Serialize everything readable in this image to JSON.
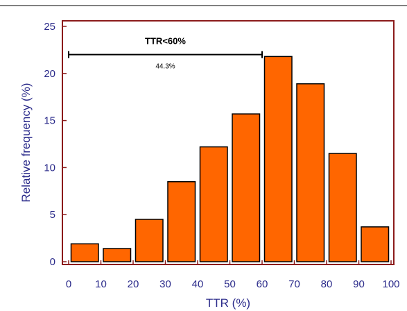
{
  "chart_data": {
    "type": "bar",
    "title": "",
    "xlabel": "TTR (%)",
    "ylabel": "Relative frequency (%)",
    "xlim": [
      0,
      100
    ],
    "ylim": [
      0,
      25
    ],
    "x_ticks": [
      "0",
      "10",
      "20",
      "30",
      "40",
      "50",
      "60",
      "70",
      "80",
      "90",
      "100"
    ],
    "y_ticks": [
      "0",
      "5",
      "10",
      "15",
      "20",
      "25"
    ],
    "bin_width": 10,
    "bins": [
      {
        "from": 0,
        "to": 10,
        "value": 1.9
      },
      {
        "from": 10,
        "to": 20,
        "value": 1.4
      },
      {
        "from": 20,
        "to": 30,
        "value": 4.5
      },
      {
        "from": 30,
        "to": 40,
        "value": 8.5
      },
      {
        "from": 40,
        "to": 50,
        "value": 12.2
      },
      {
        "from": 50,
        "to": 60,
        "value": 15.7
      },
      {
        "from": 60,
        "to": 70,
        "value": 21.8
      },
      {
        "from": 70,
        "to": 80,
        "value": 18.9
      },
      {
        "from": 80,
        "to": 90,
        "value": 11.5
      },
      {
        "from": 90,
        "to": 100,
        "value": 3.7
      }
    ],
    "grid": false,
    "colors": {
      "bar_fill": "#ff6600",
      "bar_stroke": "#000000",
      "axis": "#8b1a1a",
      "text": "#2a2a8a"
    },
    "annotation": {
      "label": "TTR<60%",
      "value_label": "44.3%",
      "x_start": 0,
      "x_end": 60,
      "y": 22
    }
  }
}
